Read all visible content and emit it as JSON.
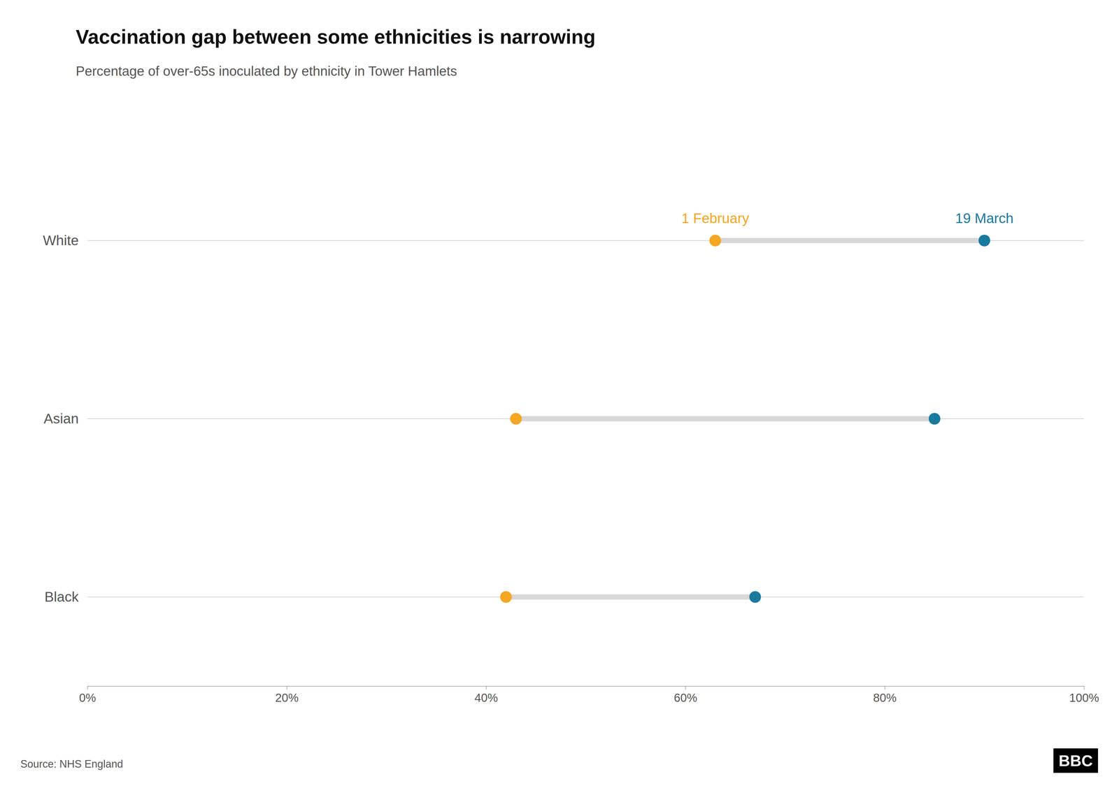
{
  "chart_data": {
    "type": "dumbbell",
    "title": "Vaccination gap between some ethnicities is narrowing",
    "subtitle": "Percentage of over-65s inoculated by ethnicity in Tower Hamlets",
    "categories": [
      "White",
      "Asian",
      "Black"
    ],
    "series": [
      {
        "name": "1 February",
        "color": "#f5a623",
        "values": [
          0.63,
          0.43,
          0.42
        ]
      },
      {
        "name": "19 March",
        "color": "#1a7a9e",
        "values": [
          0.9,
          0.85,
          0.67
        ]
      }
    ],
    "xlim": [
      0,
      1.0
    ],
    "xticks": [
      {
        "value": 0,
        "label": "0%"
      },
      {
        "value": 0.2,
        "label": "20%"
      },
      {
        "value": 0.4,
        "label": "40%"
      },
      {
        "value": 0.6,
        "label": "60%"
      },
      {
        "value": 0.8,
        "label": "80%"
      },
      {
        "value": 1.0,
        "label": "100%"
      }
    ],
    "annotations": [
      "Source: NHS England",
      "BBC"
    ]
  }
}
